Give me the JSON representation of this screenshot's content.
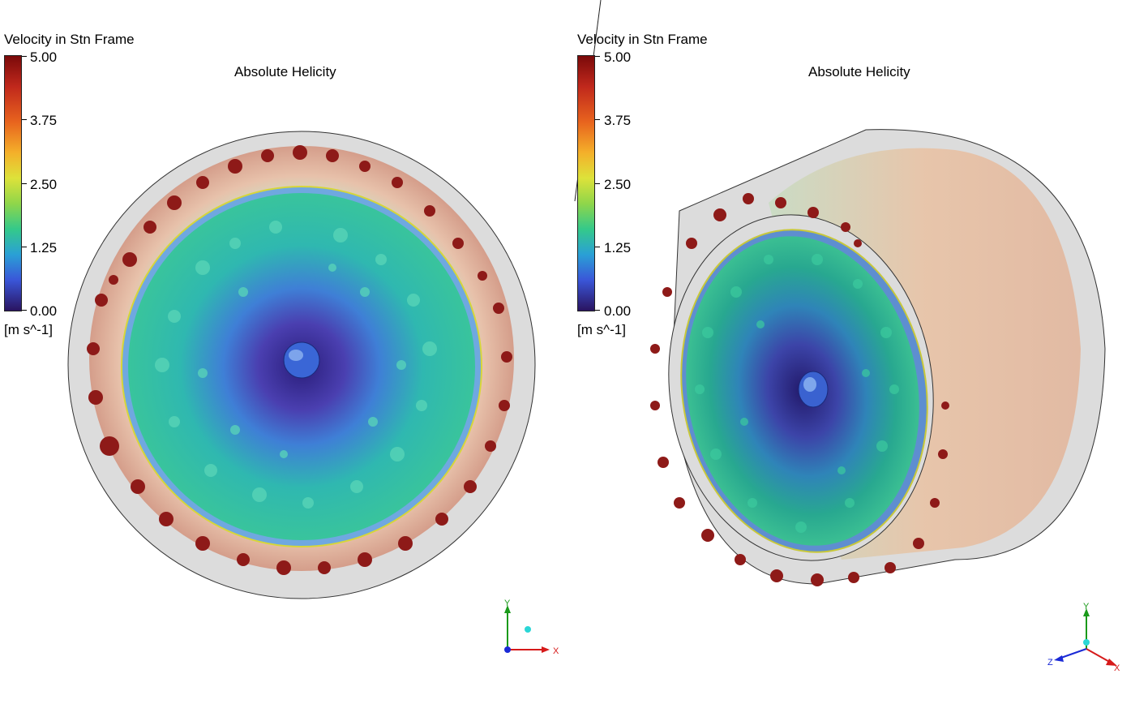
{
  "viewports": [
    {
      "legend": {
        "title": "Velocity in Stn Frame",
        "ticks": [
          "5.00",
          "3.75",
          "2.50",
          "1.25",
          "0.00"
        ],
        "units": "[m s^-1]"
      },
      "plot_title": "Absolute Helicity",
      "triad": {
        "y": "Y",
        "x": "X"
      }
    },
    {
      "legend": {
        "title": "Velocity in Stn Frame",
        "ticks": [
          "5.00",
          "3.75",
          "2.50",
          "1.25",
          "0.00"
        ],
        "units": "[m s^-1]"
      },
      "plot_title": "Absolute Helicity",
      "triad": {
        "y": "Y",
        "x": "X",
        "z": "Z"
      }
    }
  ],
  "colors": {
    "max": "#7a0a0a",
    "mid": "#8fd64a",
    "min": "#2a1460",
    "isosurface_red": "#8e1a18",
    "casing": "#d8d8d8"
  }
}
